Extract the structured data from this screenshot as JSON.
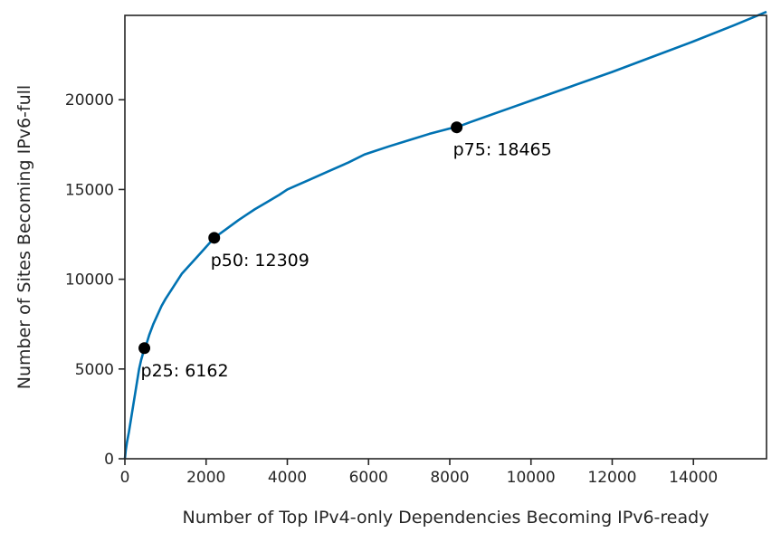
{
  "chart_data": {
    "type": "line",
    "title": "",
    "xlabel": "Number of Top IPv4-only Dependencies Becoming IPv6-ready",
    "ylabel": "Number of Sites Becoming IPv6-full",
    "xlim": [
      0,
      15800
    ],
    "ylim": [
      0,
      24700
    ],
    "xticks": [
      0,
      2000,
      4000,
      6000,
      8000,
      10000,
      12000,
      14000
    ],
    "xtick_labels": [
      "0",
      "2000",
      "4000",
      "6000",
      "8000",
      "10000",
      "12000",
      "14000"
    ],
    "yticks": [
      0,
      5000,
      10000,
      15000,
      20000
    ],
    "ytick_labels": [
      "0",
      "5000",
      "10000",
      "15000",
      "20000"
    ],
    "grid": false,
    "series": [
      {
        "color": "#0072b2",
        "x": [
          0,
          20,
          50,
          100,
          150,
          200,
          250,
          300,
          350,
          400,
          450,
          500,
          600,
          700,
          800,
          900,
          1000,
          1200,
          1400,
          1600,
          1800,
          2000,
          2200,
          2500,
          2800,
          3000,
          3200,
          3500,
          3800,
          4000,
          4200,
          4500,
          5000,
          5500,
          5900,
          6100,
          6500,
          7000,
          7500,
          8000,
          8170,
          8500,
          9000,
          9500,
          10000,
          11000,
          12000,
          13000,
          14000,
          15000,
          15800
        ],
        "y": [
          0,
          450,
          900,
          1500,
          2200,
          2900,
          3600,
          4300,
          5000,
          5500,
          5900,
          6162,
          6900,
          7500,
          8000,
          8500,
          8900,
          9600,
          10300,
          10800,
          11300,
          11800,
          12309,
          12800,
          13300,
          13600,
          13900,
          14300,
          14700,
          15000,
          15200,
          15500,
          16000,
          16500,
          16950,
          17100,
          17400,
          17750,
          18100,
          18400,
          18465,
          18750,
          19150,
          19550,
          19950,
          20750,
          21550,
          22400,
          23250,
          24150,
          24900
        ]
      }
    ],
    "annotations": [
      {
        "label": "p25: 6162",
        "x": 480,
        "y": 6162
      },
      {
        "label": "p50: 12309",
        "x": 2200,
        "y": 12309
      },
      {
        "label": "p75: 18465",
        "x": 8170,
        "y": 18465
      }
    ]
  }
}
